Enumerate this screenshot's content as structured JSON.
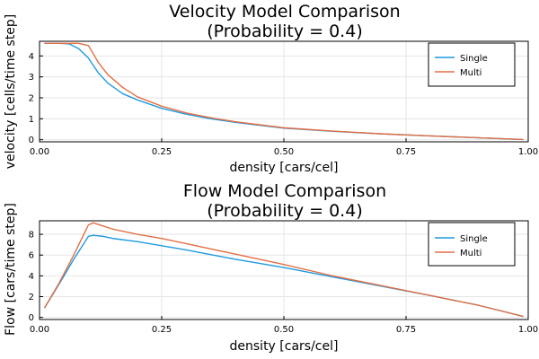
{
  "colors": {
    "single": "#1f9ae0",
    "multi": "#e26f46"
  },
  "chart_data": [
    {
      "type": "line",
      "title_line1": "Velocity Model Comparison",
      "title_line2": "(Probability = 0.4)",
      "xlabel": "density [cars/cel]",
      "ylabel": "velocity [cells/time step]",
      "xlim": [
        0,
        1
      ],
      "ylim": [
        -0.1,
        4.7
      ],
      "xticks": [
        0.0,
        0.25,
        0.5,
        0.75,
        1.0
      ],
      "xtick_labels": [
        "0.00",
        "0.25",
        "0.50",
        "0.75",
        "1.00"
      ],
      "yticks": [
        0,
        1,
        2,
        3,
        4
      ],
      "ytick_labels": [
        "0",
        "1",
        "2",
        "3",
        "4"
      ],
      "grid": true,
      "legend_position": "top-right",
      "x": [
        0.01,
        0.04,
        0.06,
        0.08,
        0.1,
        0.12,
        0.14,
        0.17,
        0.2,
        0.25,
        0.3,
        0.35,
        0.4,
        0.5,
        0.6,
        0.7,
        0.8,
        0.9,
        0.99
      ],
      "series": [
        {
          "name": "Single",
          "values": [
            4.6,
            4.6,
            4.58,
            4.35,
            3.9,
            3.2,
            2.7,
            2.2,
            1.9,
            1.5,
            1.22,
            1.0,
            0.83,
            0.55,
            0.4,
            0.28,
            0.18,
            0.09,
            0.01
          ]
        },
        {
          "name": "Multi",
          "values": [
            4.6,
            4.6,
            4.6,
            4.6,
            4.5,
            3.7,
            3.1,
            2.5,
            2.05,
            1.6,
            1.28,
            1.05,
            0.86,
            0.57,
            0.41,
            0.28,
            0.18,
            0.09,
            0.01
          ]
        }
      ]
    },
    {
      "type": "line",
      "title_line1": "Flow Model Comparison",
      "title_line2": "(Probability = 0.4)",
      "xlabel": "density [cars/cel]",
      "ylabel": "Flow [cars/time step]",
      "xlim": [
        0,
        1
      ],
      "ylim": [
        -0.2,
        9.3
      ],
      "xticks": [
        0.0,
        0.25,
        0.5,
        0.75,
        1.0
      ],
      "xtick_labels": [
        "0.00",
        "0.25",
        "0.50",
        "0.75",
        "1.00"
      ],
      "yticks": [
        0,
        2,
        4,
        6,
        8
      ],
      "ytick_labels": [
        "0",
        "2",
        "4",
        "6",
        "8"
      ],
      "grid": true,
      "legend_position": "top-right",
      "x": [
        0.01,
        0.04,
        0.07,
        0.1,
        0.11,
        0.13,
        0.15,
        0.2,
        0.25,
        0.3,
        0.35,
        0.4,
        0.5,
        0.6,
        0.7,
        0.8,
        0.9,
        0.99
      ],
      "series": [
        {
          "name": "Single",
          "values": [
            0.9,
            3.2,
            5.6,
            7.8,
            7.9,
            7.8,
            7.6,
            7.3,
            6.9,
            6.5,
            6.05,
            5.6,
            4.8,
            3.9,
            3.0,
            2.1,
            1.15,
            0.1
          ]
        },
        {
          "name": "Multi",
          "values": [
            0.9,
            3.3,
            6.0,
            8.9,
            9.1,
            8.8,
            8.5,
            8.0,
            7.6,
            7.1,
            6.6,
            6.1,
            5.1,
            4.0,
            3.05,
            2.1,
            1.15,
            0.1
          ]
        }
      ]
    }
  ]
}
